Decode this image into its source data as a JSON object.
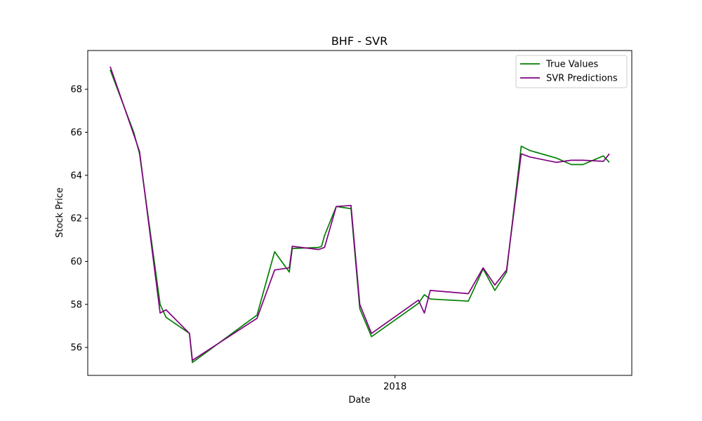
{
  "chart_data": {
    "type": "line",
    "title": "BHF - SVR",
    "xlabel": "Date",
    "ylabel": "Stock Price",
    "x_tick_labels": [
      "2018"
    ],
    "y_tick_labels": [
      "56",
      "58",
      "60",
      "62",
      "64",
      "66",
      "68"
    ],
    "ylim": [
      54.7,
      69.8
    ],
    "grid": false,
    "legend": "top-right",
    "series": [
      {
        "name": "True Values",
        "color": "#008000",
        "x": [
          "2017-09-26",
          "2017-10-04",
          "2017-10-06",
          "2017-10-13",
          "2017-10-15",
          "2017-10-23",
          "2017-10-24",
          "2017-11-15",
          "2017-11-21",
          "2017-11-26",
          "2017-11-27",
          "2017-12-06",
          "2017-12-07",
          "2017-12-08",
          "2017-12-12",
          "2017-12-17",
          "2017-12-20",
          "2017-12-24",
          "2018-01-09",
          "2018-01-11",
          "2018-01-13",
          "2018-01-26",
          "2018-01-31",
          "2018-02-04",
          "2018-02-08",
          "2018-02-13",
          "2018-02-16",
          "2018-02-25",
          "2018-03-02",
          "2018-03-06",
          "2018-03-13",
          "2018-03-15"
        ],
        "values": [
          68.9,
          66.0,
          65.0,
          58.0,
          57.4,
          56.65,
          55.3,
          57.5,
          60.45,
          59.5,
          60.6,
          60.65,
          60.7,
          61.2,
          62.55,
          62.45,
          57.8,
          56.5,
          58.05,
          58.45,
          58.25,
          58.15,
          59.65,
          58.65,
          59.5,
          65.35,
          65.15,
          64.8,
          64.5,
          64.5,
          64.9,
          64.6
        ]
      },
      {
        "name": "SVR Predictions",
        "color": "#800080",
        "x": [
          "2017-09-26",
          "2017-10-04",
          "2017-10-06",
          "2017-10-13",
          "2017-10-15",
          "2017-10-23",
          "2017-10-24",
          "2017-11-15",
          "2017-11-21",
          "2017-11-26",
          "2017-11-27",
          "2017-12-06",
          "2017-12-07",
          "2017-12-08",
          "2017-12-12",
          "2017-12-17",
          "2017-12-20",
          "2017-12-24",
          "2018-01-09",
          "2018-01-11",
          "2018-01-13",
          "2018-01-26",
          "2018-01-31",
          "2018-02-04",
          "2018-02-08",
          "2018-02-13",
          "2018-02-16",
          "2018-02-25",
          "2018-03-02",
          "2018-03-06",
          "2018-03-13",
          "2018-03-15"
        ],
        "values": [
          69.05,
          65.9,
          65.1,
          57.6,
          57.75,
          56.65,
          55.4,
          57.35,
          59.6,
          59.7,
          60.7,
          60.55,
          60.6,
          60.65,
          62.55,
          62.6,
          58.0,
          56.65,
          58.2,
          57.6,
          58.65,
          58.5,
          59.7,
          58.9,
          59.6,
          65.0,
          64.85,
          64.6,
          64.7,
          64.7,
          64.65,
          65.0
        ]
      }
    ]
  }
}
